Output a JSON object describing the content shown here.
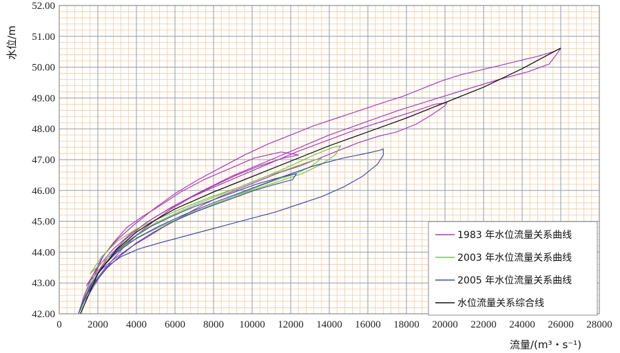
{
  "chart_data": {
    "type": "line",
    "xlabel": "流量/(m³・s⁻¹)",
    "ylabel": "水位/m",
    "xlim": [
      0,
      28000
    ],
    "ylim": [
      42,
      52
    ],
    "x_ticks": [
      "0",
      "2000",
      "4000",
      "6000",
      "8000",
      "10000",
      "12000",
      "14000",
      "16000",
      "18000",
      "20000",
      "22000",
      "24000",
      "26000",
      "28000"
    ],
    "y_ticks": [
      "42.00",
      "43.00",
      "44.00",
      "45.00",
      "46.00",
      "47.00",
      "48.00",
      "49.00",
      "50.00",
      "51.00",
      "52.00"
    ],
    "grid": "on",
    "legend_position": "bottom-right",
    "colors": {
      "grid_minor": "#f2c9a2",
      "grid_major": "#999999",
      "c1983": "#a43ab8",
      "c2003": "#7cc243",
      "c2005": "#3d4fa8",
      "combined": "#111111"
    },
    "series": [
      {
        "name": "1983 年水位流量关系曲线",
        "color": "#a43ab8",
        "loops": [
          {
            "x": [
              1000,
              1300,
              1700,
              2200,
              2800,
              3500,
              4300,
              5200,
              6300,
              7500,
              8800,
              10100,
              11500,
              12400,
              11600,
              10400,
              9200,
              8000,
              6900,
              5800,
              4900,
              4100,
              3400,
              2700,
              2100,
              1600,
              1200,
              1000
            ],
            "y": [
              42.0,
              42.6,
              43.2,
              43.8,
              44.3,
              44.8,
              45.15,
              45.5,
              45.95,
              46.35,
              46.7,
              47.05,
              47.25,
              47.15,
              47.05,
              46.8,
              46.5,
              46.15,
              45.8,
              45.4,
              45.0,
              44.6,
              44.2,
              43.7,
              43.2,
              42.7,
              42.3,
              42.0
            ]
          },
          {
            "x": [
              1400,
              2000,
              2800,
              3800,
              5000,
              6400,
              7800,
              9300,
              10800,
              12300,
              13800,
              15300,
              16800,
              18300,
              19500,
              20100,
              20000,
              19300,
              18500,
              17500,
              16500,
              15500,
              14500,
              13500,
              12500,
              11500,
              10500,
              9500,
              8500,
              7500,
              6500,
              5500,
              4600,
              3800,
              3000,
              2300,
              1700,
              1400
            ],
            "y": [
              42.9,
              43.5,
              44.1,
              44.65,
              45.15,
              45.65,
              46.05,
              46.45,
              46.85,
              47.25,
              47.6,
              47.95,
              48.25,
              48.55,
              48.8,
              48.85,
              48.75,
              48.45,
              48.15,
              47.9,
              47.75,
              47.55,
              47.3,
              47.05,
              46.8,
              46.6,
              46.35,
              46.1,
              45.85,
              45.55,
              45.2,
              44.85,
              44.5,
              44.2,
              43.85,
              43.5,
              43.15,
              42.9
            ]
          },
          {
            "x": [
              1800,
              2500,
              3400,
              4500,
              5800,
              7300,
              8900,
              10600,
              12300,
              14000,
              15800,
              17600,
              19400,
              21200,
              22800,
              24300,
              25400,
              26000,
              25600,
              24800,
              23800,
              22800,
              21800,
              20800,
              19800,
              18800,
              17800,
              16800,
              15600,
              14400,
              13200,
              12000,
              10800,
              9600,
              8400,
              7200,
              6000,
              4900,
              3900,
              3000,
              2300,
              1800
            ],
            "y": [
              43.2,
              43.8,
              44.4,
              44.95,
              45.45,
              45.95,
              46.45,
              46.9,
              47.35,
              47.8,
              48.2,
              48.6,
              48.95,
              49.3,
              49.6,
              49.85,
              50.1,
              50.6,
              50.5,
              50.35,
              50.2,
              50.05,
              49.9,
              49.75,
              49.55,
              49.3,
              49.05,
              48.85,
              48.6,
              48.35,
              48.1,
              47.8,
              47.5,
              47.15,
              46.75,
              46.35,
              45.9,
              45.4,
              44.9,
              44.4,
              43.9,
              43.2
            ]
          }
        ]
      },
      {
        "name": "2003 年水位流量关系曲线",
        "color": "#7cc243",
        "loops": [
          {
            "x": [
              1100,
              1500,
              2000,
              2600,
              3300,
              4100,
              5000,
              6000,
              7100,
              8300,
              9500,
              10700,
              11900,
              12800,
              13300,
              13600,
              13100,
              12300,
              11300,
              10200,
              9000,
              7800,
              6700,
              5700,
              4800,
              3900,
              3100,
              2400,
              1800,
              1400,
              1100
            ],
            "y": [
              42.1,
              42.7,
              43.3,
              43.8,
              44.25,
              44.6,
              44.95,
              45.25,
              45.55,
              45.85,
              46.15,
              46.45,
              46.7,
              46.9,
              47.0,
              47.05,
              46.8,
              46.55,
              46.35,
              46.1,
              45.8,
              45.5,
              45.2,
              44.95,
              44.7,
              44.4,
              44.05,
              43.65,
              43.2,
              42.7,
              42.1
            ]
          },
          {
            "x": [
              1600,
              2200,
              3000,
              4000,
              5200,
              6500,
              7900,
              9300,
              10700,
              12000,
              13200,
              14200,
              14600,
              14300,
              13600,
              12600,
              11400,
              10200,
              9000,
              7800,
              6600,
              5500,
              4500,
              3600,
              2800,
              2100,
              1600
            ],
            "y": [
              43.3,
              43.85,
              44.35,
              44.75,
              45.1,
              45.45,
              45.8,
              46.1,
              46.45,
              46.8,
              47.15,
              47.4,
              47.45,
              47.15,
              46.85,
              46.55,
              46.3,
              46.05,
              45.8,
              45.5,
              45.2,
              44.9,
              44.6,
              44.3,
              43.95,
              43.6,
              43.3
            ]
          }
        ]
      },
      {
        "name": "2005 年水位流量关系曲线",
        "color": "#3d4fa8",
        "loops": [
          {
            "x": [
              1000,
              1300,
              1800,
              2400,
              3100,
              3900,
              4800,
              5800,
              6900,
              8000,
              9100,
              10200,
              11300,
              12300,
              12100,
              11200,
              10100,
              9000,
              7900,
              6800,
              5800,
              4900,
              4000,
              3200,
              2500,
              1900,
              1400,
              1100,
              1000
            ],
            "y": [
              42.0,
              42.5,
              43.1,
              43.65,
              44.1,
              44.5,
              44.85,
              45.15,
              45.45,
              45.7,
              45.95,
              46.2,
              46.4,
              46.55,
              46.35,
              46.2,
              46.0,
              45.75,
              45.5,
              45.25,
              44.95,
              44.65,
              44.3,
              43.9,
              43.5,
              43.05,
              42.6,
              42.2,
              42.0
            ]
          },
          {
            "x": [
              1200,
              1600,
              2200,
              3000,
              4000,
              5200,
              6600,
              8200,
              9900,
              11600,
              13200,
              14700,
              15900,
              16600,
              16800,
              16800,
              16700,
              16500,
              15700,
              14700,
              13600,
              12400,
              11200,
              10000,
              8800,
              7600,
              6400,
              5200,
              4100,
              3200,
              2400,
              1800,
              1400,
              1200
            ],
            "y": [
              42.3,
              42.9,
              43.5,
              44.0,
              44.45,
              44.85,
              45.25,
              45.65,
              46.05,
              46.45,
              46.8,
              47.05,
              47.2,
              47.3,
              47.35,
              47.15,
              47.05,
              46.85,
              46.45,
              46.1,
              45.8,
              45.55,
              45.3,
              45.1,
              44.9,
              44.7,
              44.5,
              44.3,
              44.1,
              43.85,
              43.5,
              43.0,
              42.6,
              42.3
            ]
          }
        ]
      },
      {
        "name": "水位流量关系综合线",
        "color": "#111111",
        "loops": [
          {
            "x": [
              1100,
              2000,
              3000,
              4000,
              5000,
              6000,
              8000,
              10000,
              12000,
              14000,
              16000,
              18000,
              20000,
              22000,
              24000,
              26000
            ],
            "y": [
              42.0,
              43.3,
              44.1,
              44.65,
              45.05,
              45.4,
              45.95,
              46.45,
              46.95,
              47.45,
              47.9,
              48.35,
              48.85,
              49.35,
              49.95,
              50.62
            ]
          }
        ]
      }
    ]
  }
}
